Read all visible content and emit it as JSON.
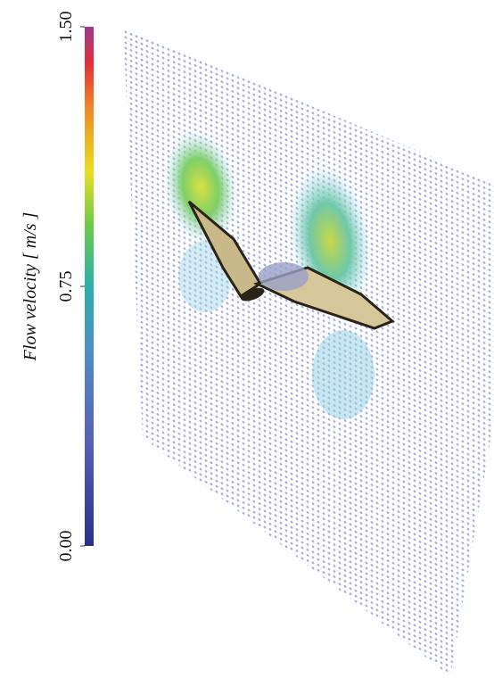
{
  "colorbar": {
    "label": "Flow velocity [ m/s ]",
    "lim": [
      0,
      1.5
    ],
    "ticks": [
      {
        "value": 0,
        "label": "0.00"
      },
      {
        "value": 0.75,
        "label": "0.75"
      },
      {
        "value": 1.5,
        "label": "1.50"
      }
    ]
  }
}
